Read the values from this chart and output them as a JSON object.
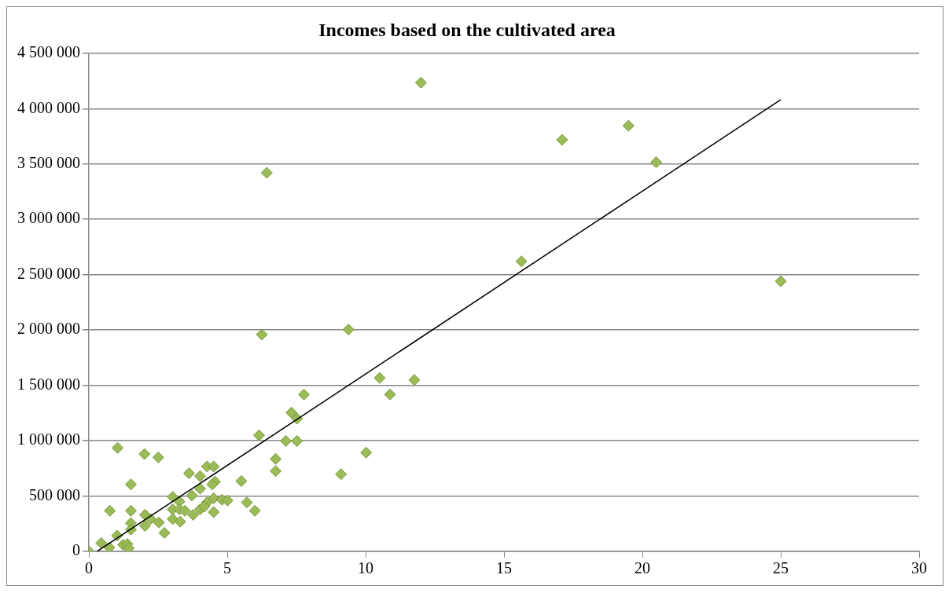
{
  "chart_data": {
    "type": "scatter",
    "title": "Incomes based on the cultivated area",
    "marker": "diamond",
    "grid": "y",
    "legend": false,
    "xlim": [
      0,
      30
    ],
    "xticks": [
      0,
      5,
      10,
      15,
      20,
      25,
      30
    ],
    "ylim": [
      0,
      4500000
    ],
    "yticks": [
      {
        "value": 0,
        "label": "0"
      },
      {
        "value": 500000,
        "label": "500 000"
      },
      {
        "value": 1000000,
        "label": "1 000 000"
      },
      {
        "value": 1500000,
        "label": "1 500 000"
      },
      {
        "value": 2000000,
        "label": "2 000 000"
      },
      {
        "value": 2500000,
        "label": "2 500 000"
      },
      {
        "value": 3000000,
        "label": "3 000 000"
      },
      {
        "value": 3500000,
        "label": "3 500 000"
      },
      {
        "value": 4000000,
        "label": "4 000 000"
      },
      {
        "value": 4500000,
        "label": "4 500 000"
      }
    ],
    "series": [
      {
        "type": "scatter",
        "color": "#9bbb59",
        "x": [
          0,
          0.45,
          0.74,
          1.02,
          1.24,
          1.39,
          1.44,
          1.04,
          1.52,
          0.76,
          1.52,
          1.52,
          1.52,
          2.01,
          2.51,
          2.03,
          2.23,
          2.03,
          2.53,
          2.73,
          3.03,
          3.03,
          3.03,
          3.27,
          3.27,
          3.3,
          3.47,
          3.62,
          3.72,
          3.77,
          4.02,
          4.02,
          4.02,
          4.27,
          4.51,
          4.56,
          4.46,
          4.27,
          4.17,
          4.51,
          4.51,
          4.81,
          5.01,
          5.51,
          5.71,
          6,
          6.75,
          6.75,
          6.25,
          9.38,
          10.51,
          11.76,
          10.88,
          7.77,
          7.32,
          7.52,
          6.15,
          7.12,
          7.52,
          10.02,
          9.11,
          6.43,
          12,
          15.63,
          17.1,
          19.5,
          20.5,
          25
        ],
        "values": [
          0,
          75000,
          35000,
          142000,
          60000,
          67000,
          30000,
          935000,
          605000,
          367000,
          367000,
          255000,
          197000,
          879000,
          849000,
          330000,
          292000,
          230000,
          260000,
          167000,
          492000,
          380000,
          292000,
          450000,
          380000,
          268000,
          367000,
          705000,
          505000,
          330000,
          680000,
          567000,
          380000,
          767000,
          767000,
          630000,
          605000,
          442000,
          405000,
          480000,
          355000,
          467000,
          460000,
          635000,
          442000,
          367000,
          835000,
          725000,
          1959000,
          2004000,
          1567000,
          1549000,
          1417000,
          1417000,
          1254000,
          1199000,
          1049000,
          997000,
          997000,
          892000,
          697000,
          3420000,
          4235000,
          2620000,
          3718000,
          3845000,
          3515000,
          2440000
        ]
      },
      {
        "type": "line",
        "color": "#000000",
        "marker": "none",
        "x": [
          0.3,
          25
        ],
        "values": [
          0,
          4080000
        ]
      }
    ]
  }
}
